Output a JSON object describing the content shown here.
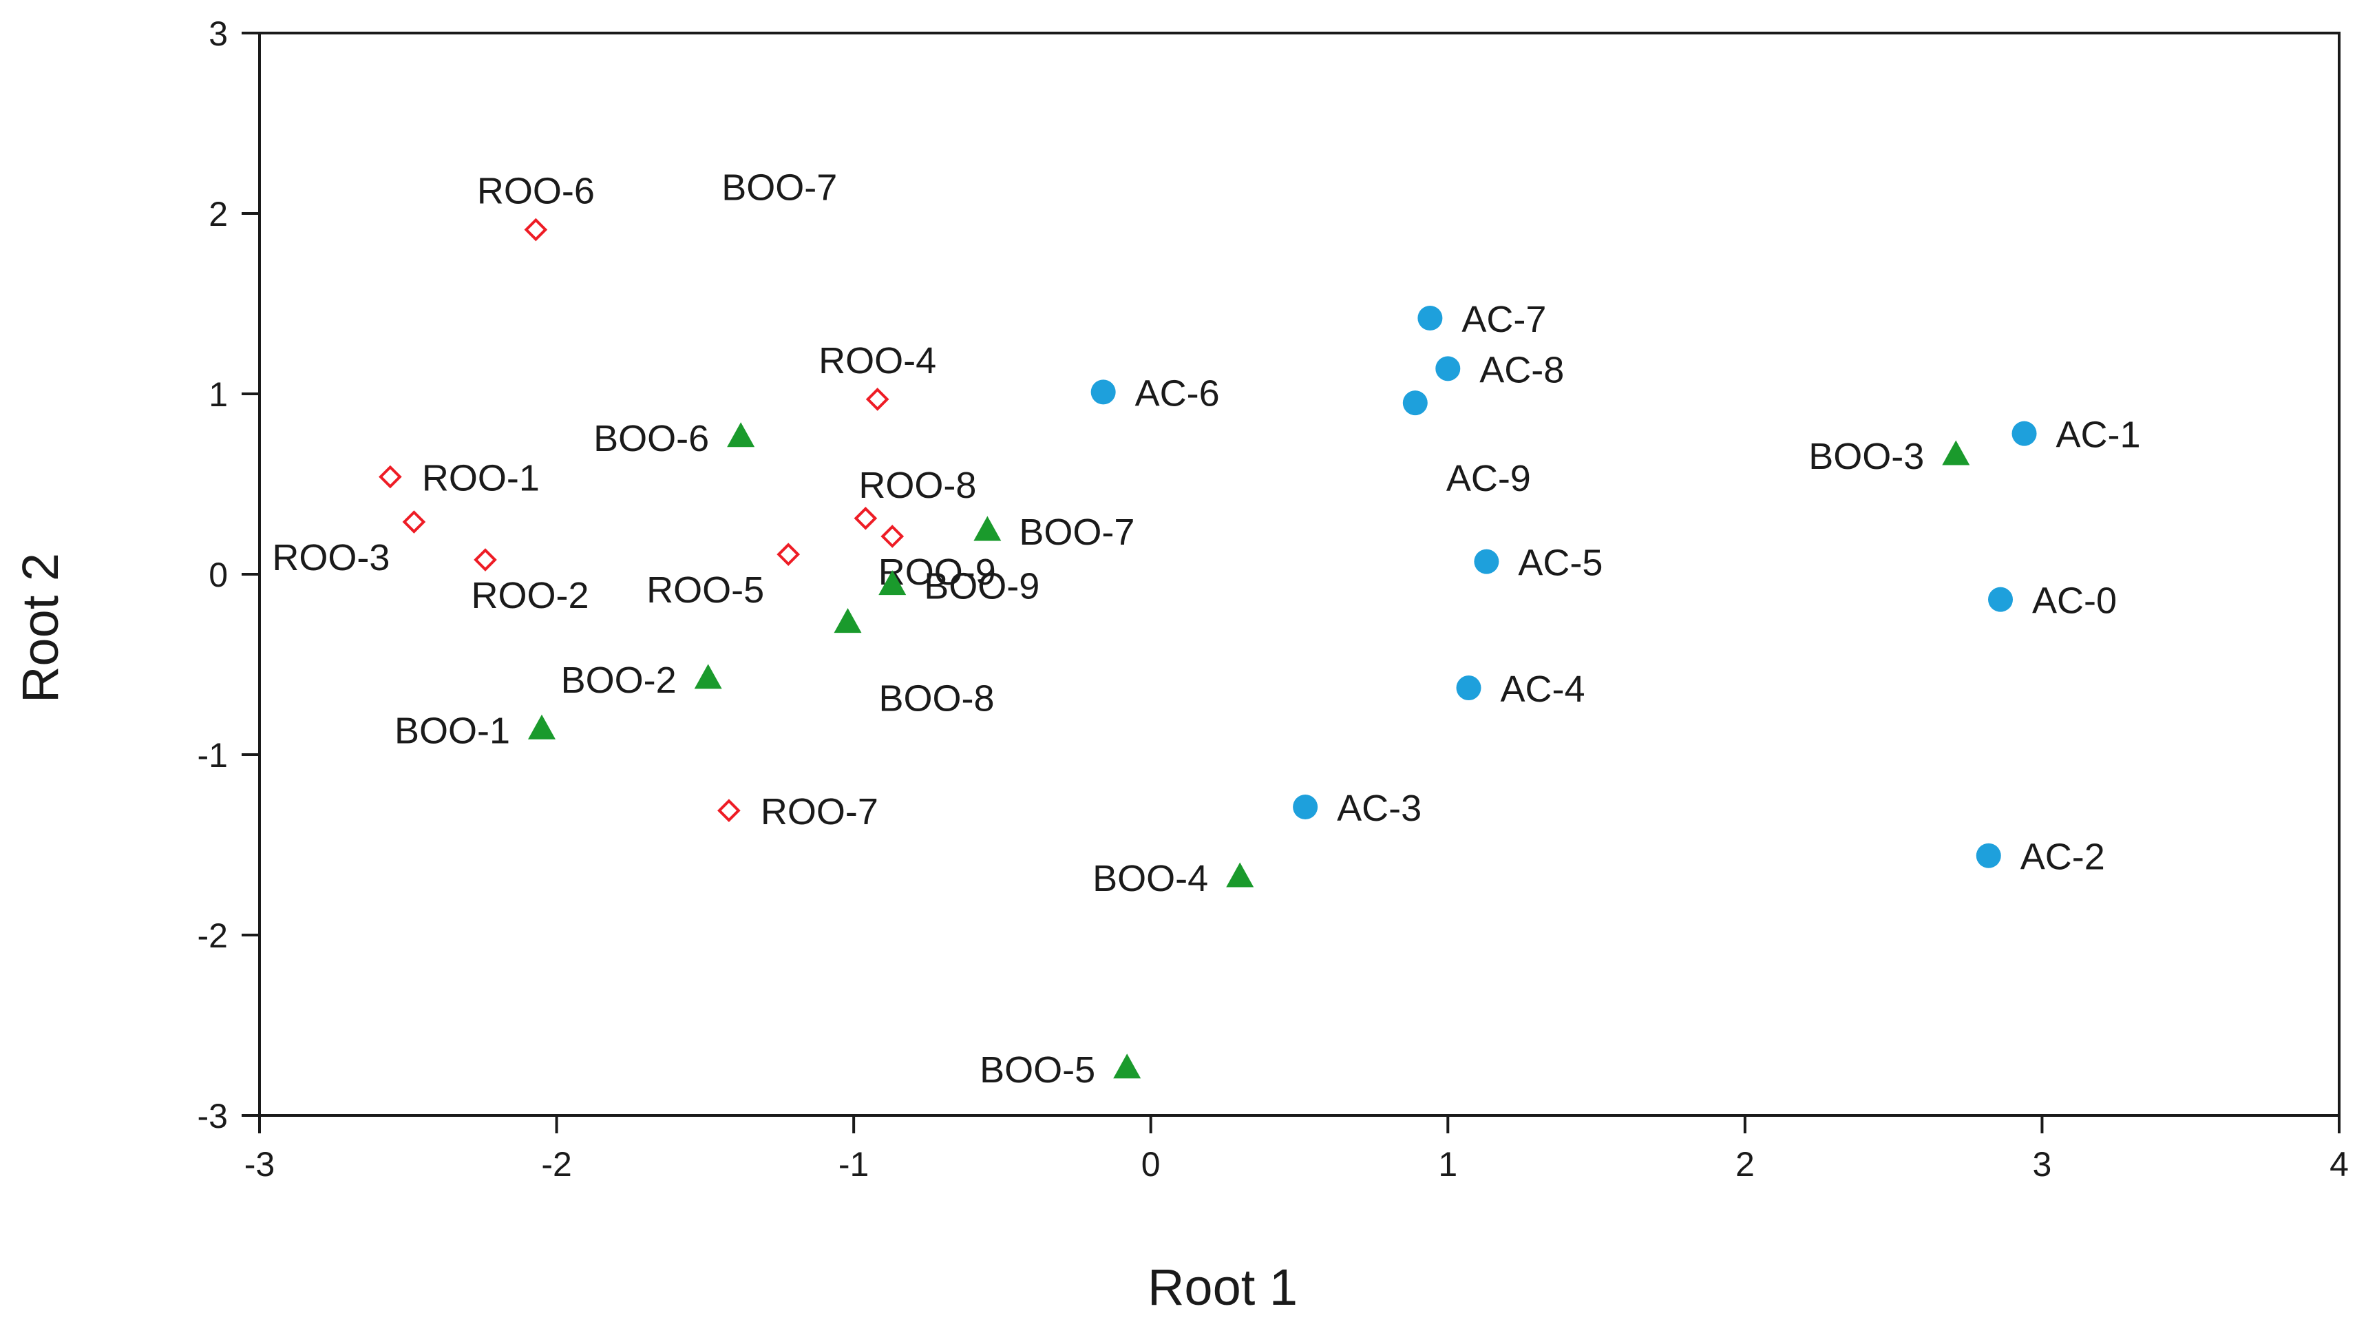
{
  "chart_data": {
    "type": "scatter",
    "title": "",
    "xlabel": "Root 1",
    "ylabel": "Root 2",
    "xlim": [
      -3,
      4
    ],
    "ylim": [
      -3,
      3
    ],
    "xticks": [
      "-3",
      "-2",
      "-1",
      "0",
      "1",
      "2",
      "3",
      "4"
    ],
    "yticks": [
      "3",
      "2",
      "1",
      "0",
      "-1",
      "-2",
      "-3"
    ],
    "legend": "none",
    "series": [
      {
        "name": "ROO",
        "marker": "diamond-open",
        "color": "#ee1c25",
        "points": [
          {
            "label": "ROO-1",
            "x": -2.56,
            "y": 0.54,
            "anchor": "right"
          },
          {
            "label": "ROO-2",
            "x": -2.24,
            "y": 0.08,
            "anchor": "below"
          },
          {
            "label": "ROO-3",
            "x": -2.48,
            "y": 0.29,
            "anchor": "below-left"
          },
          {
            "label": "ROO-4",
            "x": -0.92,
            "y": 0.97,
            "anchor": "above"
          },
          {
            "label": "ROO-5",
            "x": -1.22,
            "y": 0.11,
            "anchor": "below-left"
          },
          {
            "label": "ROO-6",
            "x": -2.07,
            "y": 1.91,
            "anchor": "above"
          },
          {
            "label": "ROO-7",
            "x": -1.42,
            "y": -1.31,
            "anchor": "right"
          },
          {
            "label": "ROO-8",
            "x": -0.96,
            "y": 0.31,
            "anchor": "above-right"
          },
          {
            "label": "ROO-9",
            "x": -0.87,
            "y": 0.21,
            "anchor": "below"
          }
        ]
      },
      {
        "name": "BOO",
        "marker": "triangle",
        "color": "#1a9a2c",
        "points": [
          {
            "label": "BOO-1",
            "x": -2.05,
            "y": -0.86,
            "anchor": "left"
          },
          {
            "label": "BOO-2",
            "x": -1.49,
            "y": -0.58,
            "anchor": "left"
          },
          {
            "label": "BOO-3",
            "x": 2.71,
            "y": 0.66,
            "anchor": "left"
          },
          {
            "label": "BOO-4",
            "x": 0.3,
            "y": -1.68,
            "anchor": "left"
          },
          {
            "label": "BOO-5",
            "x": -0.08,
            "y": -2.74,
            "anchor": "left"
          },
          {
            "label": "BOO-6",
            "x": -1.38,
            "y": 0.76,
            "anchor": "left"
          },
          {
            "label": "BOO-7",
            "x": -0.55,
            "y": 0.24,
            "anchor": "right"
          },
          {
            "label": "BOO-8",
            "x": -1.02,
            "y": -0.27,
            "anchor": "below-right"
          },
          {
            "label": "BOO-9",
            "x": -0.87,
            "y": -0.06,
            "anchor": "right"
          },
          {
            "label": "BOO-7",
            "x": -1.25,
            "y": 2.15,
            "anchor": "text-only"
          }
        ]
      },
      {
        "name": "AC",
        "marker": "circle",
        "color": "#1ea0dc",
        "points": [
          {
            "label": "AC-0",
            "x": 2.86,
            "y": -0.14,
            "anchor": "right"
          },
          {
            "label": "AC-1",
            "x": 2.94,
            "y": 0.78,
            "anchor": "right"
          },
          {
            "label": "AC-2",
            "x": 2.82,
            "y": -1.56,
            "anchor": "right"
          },
          {
            "label": "AC-3",
            "x": 0.52,
            "y": -1.29,
            "anchor": "right"
          },
          {
            "label": "AC-4",
            "x": 1.07,
            "y": -0.63,
            "anchor": "right"
          },
          {
            "label": "AC-5",
            "x": 1.13,
            "y": 0.07,
            "anchor": "right"
          },
          {
            "label": "AC-6",
            "x": -0.16,
            "y": 1.01,
            "anchor": "right"
          },
          {
            "label": "AC-7",
            "x": 0.94,
            "y": 1.42,
            "anchor": "right"
          },
          {
            "label": "AC-8",
            "x": 1.0,
            "y": 1.14,
            "anchor": "right"
          },
          {
            "label": "AC-9",
            "x": 0.89,
            "y": 0.95,
            "anchor": "below-right"
          }
        ]
      }
    ]
  }
}
